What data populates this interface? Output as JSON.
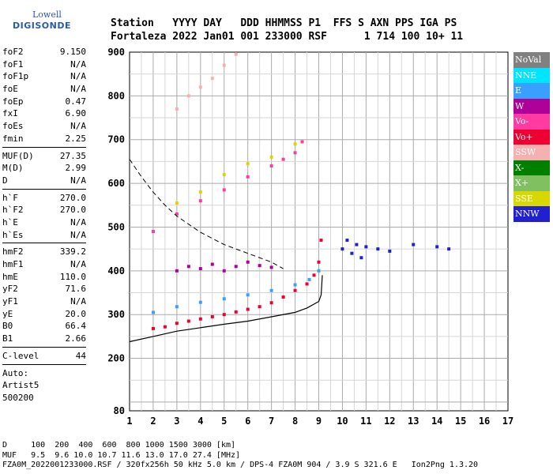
{
  "logo": {
    "line1": "Lowell",
    "line2": "DIGISONDE"
  },
  "header": {
    "line1": "Station   YYYY DAY   DDD HHMMSS P1  FFS S AXN PPS IGA PS",
    "line2": "Fortaleza 2022 Jan01 001 233000 RSF      1 714 100 10+ 11"
  },
  "params": [
    {
      "group": [
        {
          "k": "foF2",
          "v": "9.150"
        },
        {
          "k": "foF1",
          "v": "N/A"
        },
        {
          "k": "foF1p",
          "v": "N/A"
        },
        {
          "k": "foE",
          "v": "N/A"
        },
        {
          "k": "foEp",
          "v": "0.47"
        },
        {
          "k": "fxI",
          "v": "6.90"
        },
        {
          "k": "foEs",
          "v": "N/A"
        },
        {
          "k": "fmin",
          "v": "2.25"
        }
      ]
    },
    {
      "group": [
        {
          "k": "MUF(D)",
          "v": "27.35"
        },
        {
          "k": "M(D)",
          "v": "2.99"
        },
        {
          "k": "D",
          "v": "N/A"
        }
      ]
    },
    {
      "group": [
        {
          "k": "h`F",
          "v": "270.0"
        },
        {
          "k": "h`F2",
          "v": "270.0"
        },
        {
          "k": "h`E",
          "v": "N/A"
        },
        {
          "k": "h`Es",
          "v": "N/A"
        }
      ]
    },
    {
      "group": [
        {
          "k": "hmF2",
          "v": "339.2"
        },
        {
          "k": "hmF1",
          "v": "N/A"
        },
        {
          "k": "hmE",
          "v": "110.0"
        },
        {
          "k": "yF2",
          "v": "71.6"
        },
        {
          "k": "yF1",
          "v": "N/A"
        },
        {
          "k": "yE",
          "v": "20.0"
        },
        {
          "k": "B0",
          "v": "66.4"
        },
        {
          "k": "B1",
          "v": "2.66"
        }
      ]
    },
    {
      "group": [
        {
          "k": "C-level",
          "v": "44"
        }
      ]
    }
  ],
  "notes": [
    "Auto:",
    "Artist5",
    "500200"
  ],
  "legend": [
    {
      "label": "NoVal",
      "color": "#808080"
    },
    {
      "label": "NNE",
      "color": "#00e5ff"
    },
    {
      "label": "E",
      "color": "#3aa0ff"
    },
    {
      "label": "W",
      "color": "#b0009a"
    },
    {
      "label": "Vo-",
      "color": "#ff3aa0"
    },
    {
      "label": "Vo+",
      "color": "#ee0030"
    },
    {
      "label": "SSW",
      "color": "#f7b0b0"
    },
    {
      "label": "X-",
      "color": "#008000"
    },
    {
      "label": "X+",
      "color": "#80c060"
    },
    {
      "label": "SSE",
      "color": "#d8d800"
    },
    {
      "label": "NNW",
      "color": "#2020d0"
    }
  ],
  "footer": {
    "line1": "D     100  200  400  600  800 1000 1500 3000 [km]",
    "line2": "MUF   9.5  9.6 10.0 10.7 11.6 13.0 17.0 27.4 [MHz]",
    "line3": "FZA0M_2022001233000.RSF / 320fx256h 50 kHz 5.0 km / DPS-4 FZA0M 904 / 3.9 S 321.6 E   Ion2Png 1.3.20"
  },
  "chart_data": {
    "type": "scatter",
    "title": "",
    "xlabel": "",
    "ylabel": "",
    "xlim": [
      1,
      17
    ],
    "ylim": [
      80,
      900
    ],
    "x_ticks": [
      1,
      2,
      3,
      4,
      5,
      6,
      7,
      8,
      9,
      10,
      11,
      12,
      13,
      14,
      15,
      16,
      17
    ],
    "y_ticks": [
      80,
      200,
      300,
      400,
      500,
      600,
      700,
      800,
      900
    ],
    "grid": true,
    "legend_position": "right",
    "series": [
      {
        "name": "Vo+",
        "color": "#ee0030",
        "x": [
          2.0,
          2.5,
          3.0,
          3.5,
          4.0,
          4.5,
          5.0,
          5.5,
          6.0,
          6.5,
          7.0,
          7.5,
          8.0,
          8.5,
          8.8,
          9.0,
          9.1
        ],
        "y": [
          268,
          272,
          280,
          285,
          290,
          295,
          300,
          306,
          312,
          318,
          327,
          340,
          355,
          370,
          390,
          420,
          470
        ]
      },
      {
        "name": "E",
        "color": "#3aa0ff",
        "x": [
          2.0,
          3.0,
          4.0,
          5.0,
          6.0,
          7.0,
          8.0,
          8.6,
          9.0
        ],
        "y": [
          305,
          318,
          328,
          336,
          345,
          355,
          368,
          380,
          400
        ]
      },
      {
        "name": "W",
        "color": "#b0009a",
        "x": [
          3.0,
          3.5,
          4.0,
          4.5,
          5.0,
          5.5,
          6.0,
          6.5,
          7.0
        ],
        "y": [
          400,
          410,
          405,
          415,
          400,
          410,
          420,
          412,
          408
        ]
      },
      {
        "name": "Vo-",
        "color": "#ff3aa0",
        "x": [
          2.0,
          3.0,
          4.0,
          5.0,
          6.0,
          7.0,
          7.5,
          8.0,
          8.3
        ],
        "y": [
          490,
          530,
          560,
          585,
          615,
          640,
          655,
          670,
          695
        ]
      },
      {
        "name": "SSE",
        "color": "#d8d800",
        "x": [
          3.0,
          4.0,
          5.0,
          6.0,
          7.0,
          8.0
        ],
        "y": [
          555,
          580,
          620,
          645,
          660,
          690
        ]
      },
      {
        "name": "NNW",
        "color": "#2020d0",
        "x": [
          10.0,
          10.2,
          10.4,
          10.6,
          10.8,
          11.0,
          11.5,
          12.0,
          13.0,
          14.0,
          14.5
        ],
        "y": [
          450,
          470,
          440,
          460,
          430,
          455,
          450,
          445,
          460,
          455,
          450
        ]
      },
      {
        "name": "SSW",
        "color": "#f7b0b0",
        "x": [
          3.0,
          3.5,
          4.0,
          4.5,
          5.0,
          5.5
        ],
        "y": [
          770,
          800,
          820,
          840,
          870,
          895
        ]
      }
    ],
    "profile_curve": {
      "x": [
        1.0,
        2.0,
        3.0,
        4.0,
        5.0,
        6.0,
        7.0,
        8.0,
        8.5,
        9.0,
        9.1,
        9.15
      ],
      "y": [
        238,
        250,
        262,
        270,
        278,
        285,
        295,
        305,
        315,
        330,
        345,
        390
      ]
    },
    "dashed_curve": {
      "x": [
        1.0,
        1.5,
        2.0,
        2.5,
        3.0,
        4.0,
        5.0,
        6.0,
        7.0,
        7.5
      ],
      "y": [
        655,
        615,
        580,
        550,
        525,
        488,
        460,
        440,
        420,
        405
      ]
    }
  }
}
